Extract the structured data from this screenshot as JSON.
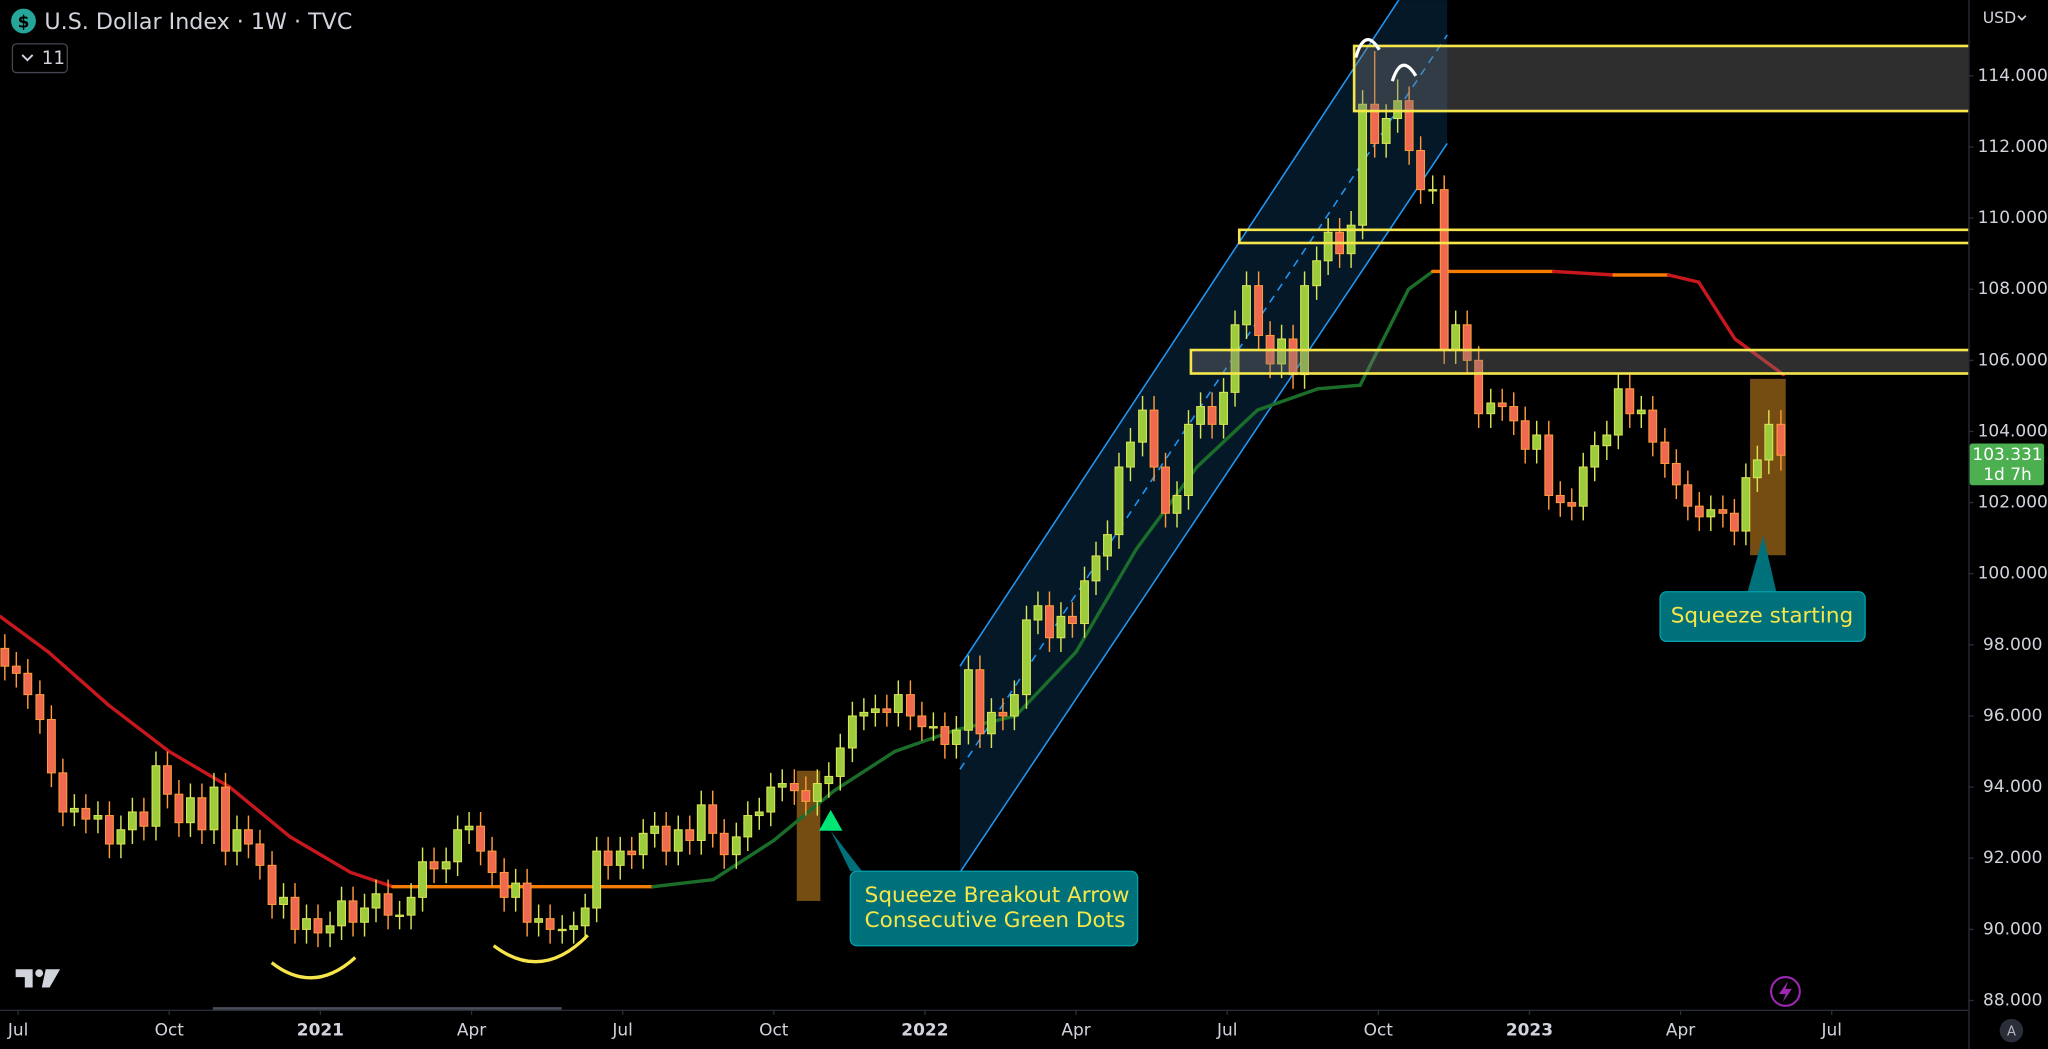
{
  "chart_data": {
    "type": "candlestick",
    "title": "U.S. Dollar Index · 1W · TVC",
    "symbol_icon": "$",
    "indicator_count": 11,
    "currency": "USD",
    "autoscale_button": "A",
    "last_price": 103.331,
    "countdown": "1d 7h",
    "colors": {
      "up": "#9ccc3c",
      "up_border": "#d8e456",
      "down": "#ef6950",
      "down_border": "#ff9a3c",
      "last": "#4caf50"
    },
    "xlim": [
      2020.47,
      2023.726
    ],
    "ylim": [
      87.74,
      116.13
    ],
    "xticks": [
      {
        "value": 2020.5,
        "label": "Jul"
      },
      {
        "value": 2020.75,
        "label": "Oct"
      },
      2021,
      {
        "value": 2021.25,
        "label": "Apr"
      },
      {
        "value": 2021.5,
        "label": "Jul"
      },
      {
        "value": 2021.75,
        "label": "Oct"
      },
      2022,
      {
        "value": 2022.25,
        "label": "Apr"
      },
      {
        "value": 2022.5,
        "label": "Jul"
      },
      {
        "value": 2022.75,
        "label": "Oct"
      },
      2023,
      {
        "value": 2023.25,
        "label": "Apr"
      },
      {
        "value": 2023.5,
        "label": "Jul"
      }
    ],
    "yticks": [
      {
        "value": 88,
        "label": "88.000"
      },
      {
        "value": 90,
        "label": "90.000"
      },
      {
        "value": 92,
        "label": "92.000"
      },
      {
        "value": 94,
        "label": "94.000"
      },
      {
        "value": 96,
        "label": "96.000"
      },
      {
        "value": 98,
        "label": "98.000"
      },
      {
        "value": 100,
        "label": "100.000"
      },
      {
        "value": 102,
        "label": "102.000"
      },
      {
        "value": 104,
        "label": "104.000"
      },
      {
        "value": 106,
        "label": "106.000"
      },
      {
        "value": 108,
        "label": "108.000"
      },
      {
        "value": 110,
        "label": "110.000"
      },
      {
        "value": 112,
        "label": "112.000"
      },
      {
        "value": 114,
        "label": "114.000"
      }
    ],
    "x": [
      2020.478,
      2020.497,
      2020.516,
      2020.536,
      2020.555,
      2020.574,
      2020.593,
      2020.612,
      2020.632,
      2020.651,
      2020.67,
      2020.689,
      2020.708,
      2020.728,
      2020.747,
      2020.766,
      2020.785,
      2020.804,
      2020.824,
      2020.843,
      2020.862,
      2020.881,
      2020.9,
      2020.92,
      2020.939,
      2020.958,
      2020.977,
      2020.996,
      2021.016,
      2021.035,
      2021.054,
      2021.073,
      2021.092,
      2021.112,
      2021.131,
      2021.15,
      2021.169,
      2021.188,
      2021.208,
      2021.227,
      2021.246,
      2021.265,
      2021.284,
      2021.304,
      2021.323,
      2021.342,
      2021.361,
      2021.38,
      2021.4,
      2021.419,
      2021.438,
      2021.457,
      2021.476,
      2021.496,
      2021.515,
      2021.534,
      2021.553,
      2021.572,
      2021.592,
      2021.611,
      2021.63,
      2021.649,
      2021.668,
      2021.688,
      2021.707,
      2021.726,
      2021.745,
      2021.764,
      2021.784,
      2021.803,
      2021.822,
      2021.841,
      2021.86,
      2021.88,
      2021.899,
      2021.918,
      2021.937,
      2021.956,
      2021.976,
      2021.995,
      2022.014,
      2022.033,
      2022.052,
      2022.072,
      2022.091,
      2022.11,
      2022.129,
      2022.148,
      2022.168,
      2022.187,
      2022.206,
      2022.225,
      2022.244,
      2022.264,
      2022.283,
      2022.302,
      2022.321,
      2022.34,
      2022.36,
      2022.379,
      2022.398,
      2022.417,
      2022.436,
      2022.456,
      2022.475,
      2022.494,
      2022.513,
      2022.532,
      2022.552,
      2022.571,
      2022.59,
      2022.609,
      2022.628,
      2022.648,
      2022.667,
      2022.686,
      2022.705,
      2022.724,
      2022.744,
      2022.763,
      2022.782,
      2022.801,
      2022.82,
      2022.84,
      2022.859,
      2022.878,
      2022.897,
      2022.916,
      2022.936,
      2022.955,
      2022.974,
      2022.993,
      2023.012,
      2023.032,
      2023.051,
      2023.07,
      2023.089,
      2023.108,
      2023.128,
      2023.147,
      2023.166,
      2023.185,
      2023.204,
      2023.224,
      2023.243,
      2023.262,
      2023.281,
      2023.3,
      2023.32,
      2023.339,
      2023.358,
      2023.377,
      2023.396,
      2023.416
    ],
    "open": [
      97.9,
      97.4,
      97.2,
      96.6,
      95.9,
      94.4,
      93.3,
      93.4,
      93.1,
      93.2,
      92.4,
      92.8,
      93.3,
      92.9,
      94.6,
      93.8,
      93.0,
      93.7,
      92.8,
      94.0,
      92.2,
      92.8,
      92.4,
      91.8,
      90.7,
      90.9,
      90.0,
      90.3,
      89.9,
      90.1,
      90.8,
      90.2,
      90.6,
      91.0,
      90.4,
      90.4,
      90.9,
      91.9,
      91.7,
      91.9,
      92.8,
      92.9,
      92.2,
      91.6,
      90.9,
      91.3,
      90.2,
      90.3,
      90.0,
      90.0,
      90.1,
      90.6,
      92.2,
      91.8,
      92.2,
      92.1,
      92.7,
      92.9,
      92.2,
      92.8,
      92.5,
      93.5,
      92.7,
      92.1,
      92.6,
      93.2,
      93.3,
      94.0,
      94.1,
      93.9,
      93.6,
      94.1,
      94.3,
      95.1,
      96.0,
      96.1,
      96.2,
      96.1,
      96.6,
      96.0,
      95.7,
      95.7,
      95.2,
      95.6,
      97.3,
      95.5,
      96.1,
      96.0,
      96.6,
      98.7,
      99.1,
      98.2,
      98.8,
      98.6,
      99.8,
      100.5,
      101.1,
      103.0,
      103.7,
      104.6,
      103.0,
      101.7,
      102.2,
      104.2,
      104.7,
      104.2,
      105.1,
      107.0,
      108.1,
      106.7,
      105.9,
      106.6,
      105.6,
      108.1,
      108.8,
      109.6,
      109.0,
      109.8,
      113.2,
      112.1,
      112.8,
      113.3,
      111.9,
      110.8,
      110.8,
      106.3,
      107.0,
      106.0,
      104.5,
      104.8,
      104.7,
      104.3,
      103.5,
      103.9,
      102.2,
      102.0,
      101.9,
      103.0,
      103.6,
      103.9,
      105.2,
      104.5,
      104.6,
      103.7,
      103.1,
      102.5,
      101.9,
      101.6,
      101.8,
      101.7,
      101.2,
      102.7,
      103.2,
      104.2
    ],
    "high": [
      98.3,
      97.8,
      97.6,
      97.0,
      96.3,
      94.8,
      93.8,
      93.8,
      93.6,
      93.6,
      93.2,
      93.7,
      93.7,
      95.0,
      95.0,
      94.2,
      94.1,
      94.1,
      94.4,
      94.4,
      93.2,
      93.2,
      92.8,
      92.2,
      91.3,
      91.3,
      90.7,
      90.7,
      90.5,
      91.2,
      91.2,
      91.0,
      91.4,
      91.4,
      90.8,
      91.3,
      92.3,
      92.3,
      92.3,
      93.2,
      93.3,
      93.3,
      92.6,
      92.0,
      91.7,
      91.7,
      90.7,
      90.7,
      90.4,
      90.5,
      91.0,
      92.6,
      92.6,
      92.6,
      92.6,
      93.1,
      93.3,
      93.3,
      93.2,
      93.2,
      93.9,
      93.9,
      93.1,
      93.0,
      93.6,
      93.7,
      94.4,
      94.5,
      94.5,
      94.3,
      94.5,
      94.7,
      95.5,
      96.4,
      96.5,
      96.6,
      96.6,
      97.0,
      97.0,
      96.4,
      96.1,
      96.1,
      96.0,
      97.7,
      97.7,
      96.5,
      96.5,
      97.0,
      99.1,
      99.5,
      99.5,
      99.2,
      99.2,
      100.2,
      100.9,
      101.5,
      103.4,
      104.1,
      105.0,
      105.0,
      103.4,
      102.6,
      104.6,
      105.1,
      105.1,
      105.5,
      107.4,
      108.5,
      108.5,
      107.1,
      107.0,
      107.0,
      108.5,
      109.2,
      110.0,
      110.0,
      110.2,
      113.6,
      114.7,
      113.2,
      113.9,
      113.7,
      112.3,
      111.2,
      111.2,
      107.4,
      107.4,
      106.4,
      105.2,
      105.2,
      105.1,
      104.7,
      104.3,
      104.3,
      102.6,
      102.4,
      103.4,
      104.0,
      104.3,
      105.6,
      105.6,
      105.0,
      105.0,
      104.1,
      103.5,
      102.9,
      102.3,
      102.2,
      102.2,
      102.1,
      103.1,
      103.6,
      104.6,
      104.6
    ],
    "low": [
      97.0,
      96.8,
      96.2,
      95.5,
      94.0,
      92.9,
      92.9,
      92.7,
      92.7,
      92.0,
      92.0,
      92.4,
      92.5,
      92.5,
      93.4,
      92.6,
      92.6,
      92.4,
      92.4,
      91.8,
      91.8,
      92.0,
      91.4,
      90.3,
      90.3,
      89.6,
      89.6,
      89.5,
      89.5,
      89.7,
      89.8,
      89.8,
      90.2,
      90.0,
      90.0,
      90.0,
      90.5,
      91.3,
      91.3,
      91.5,
      92.4,
      91.8,
      91.2,
      90.5,
      90.5,
      89.8,
      89.8,
      89.6,
      89.6,
      89.6,
      89.7,
      90.2,
      91.4,
      91.4,
      91.7,
      91.7,
      92.3,
      91.8,
      91.8,
      92.1,
      92.1,
      92.3,
      91.7,
      91.7,
      92.2,
      92.8,
      92.9,
      93.6,
      93.5,
      93.2,
      93.2,
      93.7,
      93.9,
      94.7,
      95.6,
      95.7,
      95.7,
      95.7,
      95.6,
      95.3,
      95.3,
      94.8,
      94.8,
      95.2,
      95.1,
      95.1,
      95.6,
      95.6,
      96.2,
      98.3,
      97.8,
      97.8,
      98.2,
      98.2,
      99.4,
      100.1,
      100.7,
      102.6,
      103.3,
      102.6,
      101.3,
      101.3,
      101.8,
      103.8,
      103.8,
      103.8,
      104.7,
      106.6,
      106.3,
      105.5,
      105.5,
      105.2,
      105.2,
      107.7,
      108.4,
      108.6,
      108.6,
      109.4,
      111.7,
      111.7,
      112.4,
      111.5,
      110.4,
      110.4,
      105.9,
      105.9,
      105.6,
      104.1,
      104.1,
      104.3,
      103.9,
      103.1,
      103.1,
      101.8,
      101.6,
      101.5,
      101.5,
      102.6,
      103.2,
      103.5,
      104.1,
      104.1,
      103.3,
      102.7,
      102.1,
      101.5,
      101.2,
      101.2,
      101.3,
      100.8,
      100.8,
      102.3,
      102.8,
      102.9
    ],
    "close": [
      97.4,
      97.2,
      96.6,
      95.9,
      94.4,
      93.3,
      93.4,
      93.1,
      93.2,
      92.4,
      92.8,
      93.3,
      92.9,
      94.6,
      93.8,
      93.0,
      93.7,
      92.8,
      94.0,
      92.2,
      92.8,
      92.4,
      91.8,
      90.7,
      90.9,
      90.0,
      90.3,
      89.9,
      90.1,
      90.8,
      90.2,
      90.6,
      91.0,
      90.4,
      90.4,
      90.9,
      91.9,
      91.7,
      91.9,
      92.8,
      92.9,
      92.2,
      91.6,
      90.9,
      91.3,
      90.2,
      90.3,
      90.0,
      90.0,
      90.1,
      90.6,
      92.2,
      91.8,
      92.2,
      92.1,
      92.7,
      92.9,
      92.2,
      92.8,
      92.5,
      93.5,
      92.7,
      92.1,
      92.6,
      93.2,
      93.3,
      94.0,
      94.1,
      93.9,
      93.6,
      94.1,
      94.3,
      95.1,
      96.0,
      96.1,
      96.2,
      96.1,
      96.6,
      96.0,
      95.7,
      95.7,
      95.2,
      95.6,
      97.3,
      95.5,
      96.1,
      96.0,
      96.6,
      98.7,
      99.1,
      98.2,
      98.8,
      98.6,
      99.8,
      100.5,
      101.1,
      103.0,
      103.7,
      104.6,
      103.0,
      101.7,
      102.2,
      104.2,
      104.7,
      104.2,
      105.1,
      107.0,
      108.1,
      106.7,
      105.9,
      106.6,
      105.6,
      108.1,
      108.8,
      109.6,
      109.0,
      109.8,
      113.2,
      112.1,
      112.8,
      113.3,
      111.9,
      110.8,
      110.8,
      106.3,
      107.0,
      106.0,
      104.5,
      104.8,
      104.7,
      104.3,
      103.5,
      103.9,
      102.2,
      102.0,
      101.9,
      103.0,
      103.6,
      103.9,
      105.2,
      104.5,
      104.6,
      103.7,
      103.1,
      102.5,
      101.9,
      101.6,
      101.8,
      101.7,
      101.2,
      102.7,
      103.2,
      104.2,
      103.331
    ],
    "indicator_line": {
      "x": [
        2020.47,
        2020.55,
        2020.65,
        2020.75,
        2020.85,
        2020.95,
        2021.05,
        2021.12,
        2021.55,
        2021.65,
        2021.75,
        2021.85,
        2021.95,
        2022.05,
        2022.15,
        2022.25,
        2022.35,
        2022.45,
        2022.55,
        2022.65,
        2022.72,
        2022.8,
        2022.84,
        2023.04,
        2023.14,
        2023.23,
        2023.28,
        2023.34,
        2023.42
      ],
      "values": [
        98.8,
        97.8,
        96.3,
        95.0,
        94.0,
        92.6,
        91.6,
        91.2,
        91.2,
        91.4,
        92.5,
        93.9,
        95.0,
        95.6,
        96.0,
        97.8,
        100.7,
        103.0,
        104.6,
        105.2,
        105.3,
        108.0,
        108.5,
        108.5,
        108.4,
        108.4,
        108.2,
        106.6,
        105.6
      ],
      "segment_colors": [
        "#c8181e",
        "#c8181e",
        "#c8181e",
        "#c8181e",
        "#c8181e",
        "#c8181e",
        "#c8181e",
        "#f57c00",
        "#1b6e2a",
        "#1b6e2a",
        "#1b6e2a",
        "#1b6e2a",
        "#1b6e2a",
        "#1b6e2a",
        "#1b6e2a",
        "#1b6e2a",
        "#1b6e2a",
        "#1b6e2a",
        "#1b6e2a",
        "#1b6e2a",
        "#1b6e2a",
        "#1b6e2a",
        "#f57c00",
        "#c8181e",
        "#f57c00",
        "#c8181e",
        "#c8181e",
        "#c8181e"
      ]
    },
    "zone_color": "#f5e64b",
    "zone_fill": "#787878",
    "zones": [
      {
        "top": 114.84,
        "bottom": 113.01,
        "start": 2022.71,
        "filled": true
      },
      {
        "top": 109.67,
        "bottom": 109.3,
        "start": 2022.52,
        "filled": false
      },
      {
        "top": 106.29,
        "bottom": 105.63,
        "start": 2022.44,
        "filled": true
      }
    ],
    "channel": {
      "start": 2022.058,
      "end": 2022.864,
      "upper": [
        97.4,
        118.2
      ],
      "lower": [
        91.6,
        112.1
      ],
      "color": "#2196f3"
    },
    "squeeze_color": "#8a5a16",
    "squeeze_boxes": [
      {
        "start": 2021.788,
        "end": 2021.827,
        "top": 94.46,
        "bottom": 90.8
      },
      {
        "start": 2023.365,
        "end": 2023.424,
        "top": 105.48,
        "bottom": 100.52
      }
    ],
    "annotations": [
      {
        "lines": [
          "Squeeze Breakout Arrow",
          "Consecutive Green Dots"
        ]
      },
      {
        "lines": [
          "Squeeze starting"
        ]
      }
    ]
  }
}
